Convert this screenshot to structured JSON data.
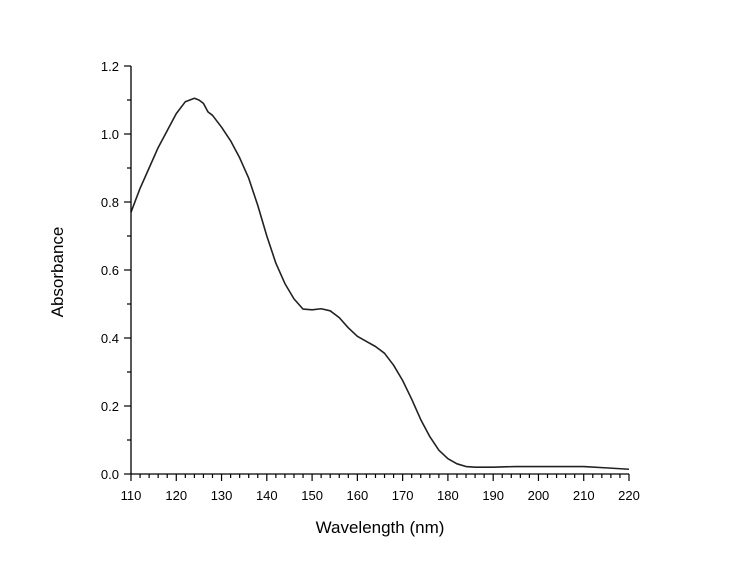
{
  "chart_data": {
    "type": "line",
    "title": "",
    "xlabel": "Wavelength (nm)",
    "ylabel": "Absorbance",
    "xlim": [
      110,
      220
    ],
    "ylim": [
      0.0,
      1.2
    ],
    "grid": false,
    "x_ticks": [
      "110",
      "120",
      "130",
      "140",
      "150",
      "160",
      "170",
      "180",
      "190",
      "200",
      "210",
      "220"
    ],
    "y_ticks": [
      "0.0",
      "0.2",
      "0.4",
      "0.6",
      "0.8",
      "1.0",
      "1.2"
    ],
    "series": [
      {
        "name": "",
        "x": [
          110,
          112,
          114,
          116,
          118,
          120,
          122,
          123,
          124,
          125,
          126,
          127,
          128,
          130,
          132,
          134,
          136,
          138,
          140,
          142,
          144,
          146,
          147,
          148,
          150,
          152,
          154,
          156,
          158,
          160,
          162,
          164,
          166,
          168,
          170,
          172,
          174,
          176,
          178,
          180,
          182,
          184,
          186,
          188,
          190,
          195,
          200,
          205,
          210,
          215,
          220
        ],
        "y": [
          0.77,
          0.84,
          0.9,
          0.96,
          1.01,
          1.06,
          1.095,
          1.1,
          1.105,
          1.1,
          1.09,
          1.065,
          1.055,
          1.02,
          0.98,
          0.93,
          0.87,
          0.79,
          0.7,
          0.62,
          0.56,
          0.515,
          0.5,
          0.485,
          0.483,
          0.486,
          0.48,
          0.46,
          0.43,
          0.405,
          0.39,
          0.375,
          0.355,
          0.32,
          0.275,
          0.22,
          0.16,
          0.11,
          0.07,
          0.045,
          0.03,
          0.022,
          0.02,
          0.02,
          0.02,
          0.022,
          0.022,
          0.022,
          0.022,
          0.018,
          0.014
        ]
      }
    ]
  }
}
